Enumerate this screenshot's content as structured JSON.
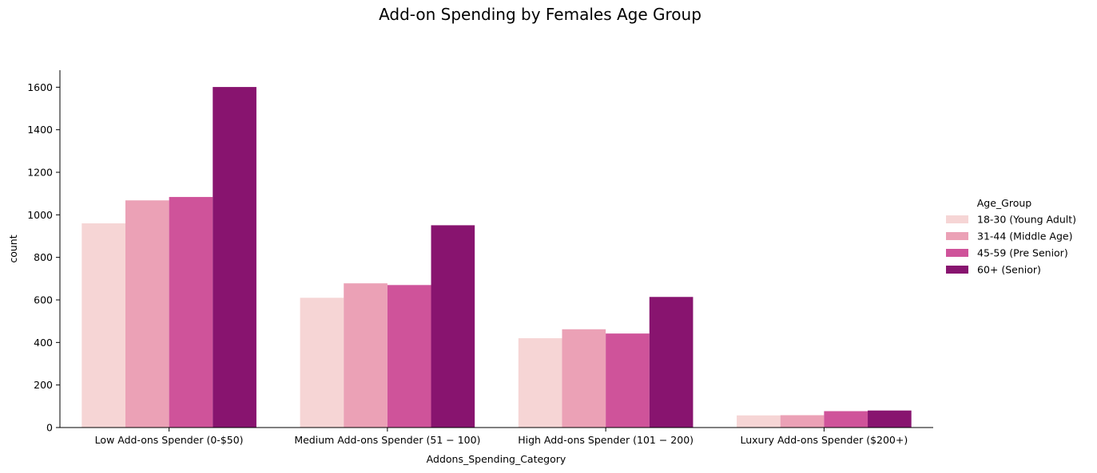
{
  "chart_data": {
    "type": "bar",
    "title": "Add-on Spending by Females Age Group",
    "xlabel": "Addons_Spending_Category",
    "ylabel": "count",
    "ylim": [
      0,
      1680
    ],
    "yticks": [
      0,
      200,
      400,
      600,
      800,
      1000,
      1200,
      1400,
      1600
    ],
    "grid": false,
    "legend_position": "right",
    "legend_title": "Age_Group",
    "categories": [
      "Low Add-ons Spender (0-$50)",
      "Medium Add-ons Spender ($51 - $100)",
      "High Add-ons Spender ($101 - $200)",
      "Luxury Add-ons Spender ($200+)"
    ],
    "category_display": [
      "Low Add-ons Spender (0-$50)",
      "Medium Add-ons Spender (51 − 100)",
      "High Add-ons Spender (101 − 200)",
      "Luxury Add-ons Spender ($200+)"
    ],
    "series": [
      {
        "name": "18-30 (Young Adult)",
        "color": "#f6d5d5",
        "values": [
          960,
          610,
          420,
          57
        ]
      },
      {
        "name": "31-44 (Middle Age)",
        "color": "#eba1b6",
        "values": [
          1068,
          678,
          462,
          58
        ]
      },
      {
        "name": "45-59 (Pre Senior)",
        "color": "#cf539a",
        "values": [
          1084,
          670,
          442,
          77
        ]
      },
      {
        "name": "60+ (Senior)",
        "color": "#88146f",
        "values": [
          1601,
          951,
          614,
          80
        ]
      }
    ]
  }
}
